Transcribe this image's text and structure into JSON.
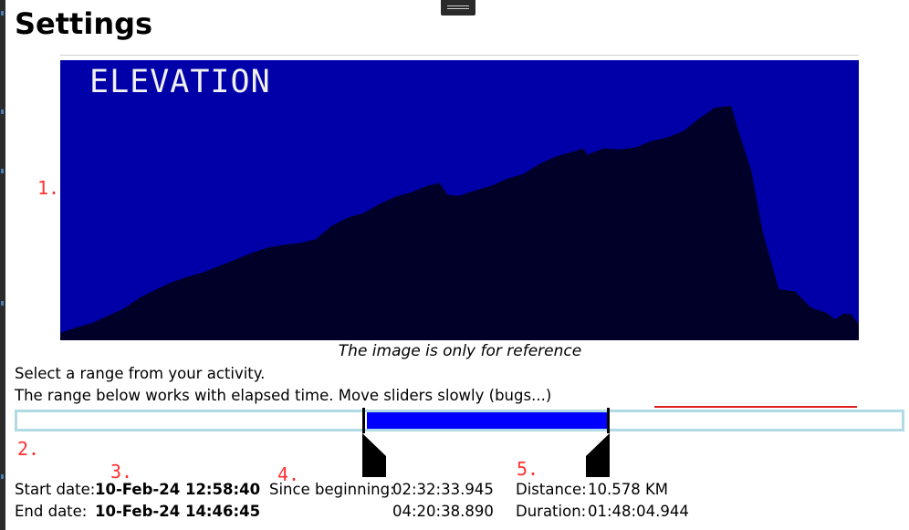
{
  "page": {
    "title": "Settings"
  },
  "elevation": {
    "label": "ELEVATION",
    "caption": "The image is only for reference",
    "colors": {
      "background": "#0000a8",
      "profile": "#000028",
      "label": "#f0f0f0"
    },
    "profile": [
      [
        0.0,
        0.0
      ],
      [
        2.0,
        6.0
      ],
      [
        4.0,
        11.0
      ],
      [
        6.0,
        19.0
      ],
      [
        8.0,
        27.0
      ],
      [
        10.0,
        39.0
      ],
      [
        12.0,
        48.0
      ],
      [
        14.0,
        56.0
      ],
      [
        16.0,
        62.0
      ],
      [
        18.0,
        67.0
      ],
      [
        20.0,
        74.0
      ],
      [
        22.0,
        81.0
      ],
      [
        24.0,
        88.0
      ],
      [
        26.0,
        94.0
      ],
      [
        28.0,
        97.0
      ],
      [
        30.0,
        99.0
      ],
      [
        32.0,
        103.0
      ],
      [
        34.0,
        118.0
      ],
      [
        36.0,
        127.0
      ],
      [
        38.0,
        132.0
      ],
      [
        40.0,
        142.0
      ],
      [
        42.0,
        150.0
      ],
      [
        44.0,
        155.0
      ],
      [
        46.0,
        162.0
      ],
      [
        47.5,
        165.0
      ],
      [
        48.5,
        152.0
      ],
      [
        50.0,
        151.0
      ],
      [
        52.0,
        157.0
      ],
      [
        54.0,
        162.0
      ],
      [
        56.0,
        170.0
      ],
      [
        58.0,
        175.0
      ],
      [
        60.0,
        186.0
      ],
      [
        62.0,
        194.0
      ],
      [
        64.0,
        199.0
      ],
      [
        65.5,
        203.0
      ],
      [
        66.0,
        196.0
      ],
      [
        68.0,
        203.0
      ],
      [
        70.0,
        202.0
      ],
      [
        72.0,
        204.0
      ],
      [
        74.0,
        211.0
      ],
      [
        76.0,
        215.0
      ],
      [
        78.0,
        222.0
      ],
      [
        80.0,
        236.0
      ],
      [
        82.0,
        248.0
      ],
      [
        84.0,
        250.0
      ],
      [
        85.0,
        220.0
      ],
      [
        86.5,
        180.0
      ],
      [
        88.0,
        110.0
      ],
      [
        90.0,
        48.0
      ],
      [
        92.0,
        46.0
      ],
      [
        94.0,
        28.0
      ],
      [
        96.0,
        22.0
      ],
      [
        97.0,
        15.0
      ],
      [
        98.0,
        21.0
      ],
      [
        99.0,
        21.0
      ],
      [
        100.0,
        10.0
      ],
      [
        101.5,
        29.0
      ],
      [
        103.0,
        35.0
      ],
      [
        104.5,
        28.0
      ],
      [
        106.0,
        20.0
      ],
      [
        107.5,
        0.0
      ]
    ]
  },
  "markers": {
    "m1": "1.",
    "m2": "2.",
    "m3": "3.",
    "m4": "4.",
    "m5": "5."
  },
  "instructions": {
    "line1": "Select a range from your activity.",
    "line2": "The range below works with elapsed time. Move sliders slowly (bugs...)"
  },
  "range": {
    "min": 0,
    "max": 100,
    "start_pct": 39.5,
    "end_pct": 66.9,
    "fill_color": "#0000ff",
    "track_border_color": "#b0dbe4",
    "handle_color": "#000000"
  },
  "stats": {
    "start_label": "Start date:",
    "start_value": "10-Feb-24 12:58:40",
    "end_label": "End date:",
    "end_value": "10-Feb-24 14:46:45",
    "since_label": "Since beginning:",
    "since_start": "02:32:33.945",
    "since_end": "04:20:38.890",
    "distance_label": "Distance:",
    "distance_value": "10.578 KM",
    "duration_label": "Duration:",
    "duration_value": "01:48:04.944"
  }
}
